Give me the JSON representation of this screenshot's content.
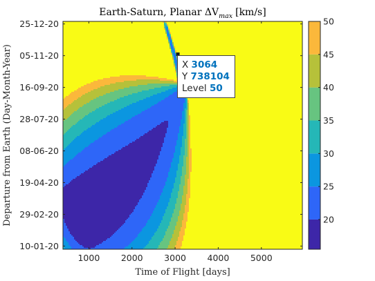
{
  "chart_data": {
    "type": "contourf",
    "title": "Earth-Saturn, Planar ΔV",
    "title_sub": "max",
    "title_unit": "[km/s]",
    "xlabel": "Time of Flight [days]",
    "ylabel": "Departure from Earth (Day-Month-Year)",
    "xlim": [
      400,
      5950
    ],
    "ylim": [
      "2020-01-05",
      "2020-12-29"
    ],
    "x_ticks": [
      1000,
      2000,
      3000,
      4000,
      5000
    ],
    "x_tick_labels": [
      "1000",
      "2000",
      "3000",
      "4000",
      "5000"
    ],
    "y_ticks": [
      "2020-01-10",
      "2020-02-29",
      "2020-04-19",
      "2020-06-08",
      "2020-07-28",
      "2020-09-16",
      "2020-11-05",
      "2020-12-25"
    ],
    "y_tick_labels": [
      "10-01-20",
      "29-02-20",
      "19-04-20",
      "08-06-20",
      "28-07-20",
      "16-09-20",
      "05-11-20",
      "25-12-20"
    ],
    "contour_levels": [
      20,
      25,
      30,
      35,
      40,
      45,
      50
    ],
    "minimum": {
      "x": 1600,
      "y": "2020-04-02",
      "value": 16
    },
    "colorbar": {
      "limits": [
        15.5,
        50
      ],
      "ticks": [
        20,
        25,
        30,
        35,
        40,
        45,
        50
      ],
      "tick_labels": [
        "20",
        "25",
        "30",
        "35",
        "40",
        "45",
        "50"
      ],
      "colors": {
        "below_20": "#3d26a8",
        "20_25": "#2e66f8",
        "25_30": "#0b96e0",
        "30_35": "#25b7b7",
        "35_40": "#67c480",
        "40_45": "#b6c13a",
        "45_50": "#fbb83b",
        "above_50": "#f9fb15"
      }
    },
    "grid": false
  },
  "datatip": {
    "x_label": "X",
    "x_value": "3064",
    "y_label": "Y",
    "y_value": "738104",
    "level_label": "Level",
    "level_value": "50"
  }
}
